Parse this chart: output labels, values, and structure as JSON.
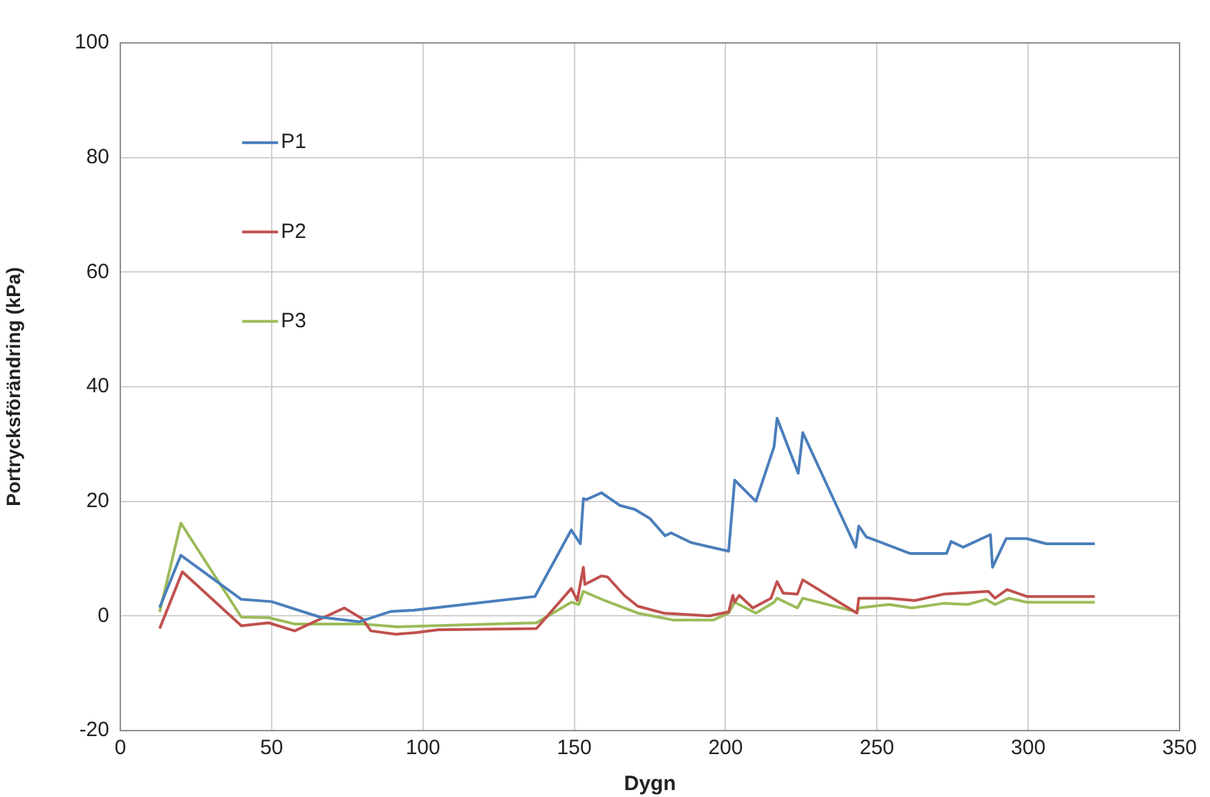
{
  "chart_data": {
    "type": "line",
    "xlabel": "Dygn",
    "ylabel": "Portrycksförändring (kPa)",
    "xlim": [
      0,
      350
    ],
    "xticks": [
      0,
      50,
      100,
      150,
      200,
      250,
      300,
      350
    ],
    "ylim": [
      -20,
      100
    ],
    "yticks": [
      -20,
      0,
      20,
      40,
      60,
      80,
      100
    ],
    "grid": true,
    "legend": "top left",
    "marker": "none",
    "line_style": "solid",
    "series": [
      {
        "name": "P1",
        "color": "#4a7ebb",
        "x": [
          13,
          20,
          40,
          50,
          66,
          79,
          89.5,
          97,
          137,
          149,
          152,
          153,
          154,
          159,
          165,
          170,
          175,
          180,
          182,
          188.6,
          201,
          203,
          210,
          216,
          217,
          224,
          225.5,
          243,
          244,
          246.5,
          261,
          273,
          274.5,
          278.5,
          287.5,
          288.2,
          292.7,
          299.5,
          306,
          322
        ],
        "values": [
          1.5,
          10.6,
          2.9,
          2.5,
          -0.2,
          -1,
          0.8,
          1,
          3.4,
          15,
          12.6,
          20.5,
          20.3,
          21.5,
          19.3,
          18.6,
          17,
          14,
          14.5,
          12.8,
          11.3,
          23.7,
          20,
          29.5,
          34.5,
          24.9,
          32,
          12,
          15.7,
          13.8,
          10.9,
          10.9,
          13,
          12,
          14.2,
          8.5,
          13.5,
          13.5,
          12.6,
          12.6
        ]
      },
      {
        "name": "P2",
        "color": "#c0504d",
        "x": [
          13,
          20.5,
          40,
          49,
          57.6,
          74,
          80,
          82.8,
          91,
          98,
          105,
          137.5,
          149,
          151,
          153,
          153.5,
          159,
          161,
          166.5,
          171,
          179.5,
          194.6,
          201,
          202.4,
          203,
          204.5,
          209,
          215,
          217,
          219,
          223.7,
          225.5,
          243.4,
          244,
          254,
          262.5,
          272,
          286.8,
          289,
          293,
          299.5,
          322
        ],
        "values": [
          -2.2,
          7.7,
          -1.7,
          -1.2,
          -2.6,
          1.4,
          -0.5,
          -2.6,
          -3.2,
          -2.9,
          -2.4,
          -2.2,
          4.8,
          2.7,
          8.5,
          5.5,
          7,
          6.8,
          3.6,
          1.7,
          0.5,
          0,
          0.7,
          3.6,
          2.4,
          3.6,
          1.4,
          3.1,
          6,
          4,
          3.8,
          6.3,
          0.5,
          3.1,
          3.1,
          2.7,
          3.8,
          4.3,
          3.1,
          4.6,
          3.4,
          3.4
        ]
      },
      {
        "name": "P3",
        "color": "#9bbb59",
        "x": [
          13,
          20,
          40,
          49,
          57.6,
          80,
          91.5,
          137.5,
          149,
          151.5,
          153,
          160,
          171,
          182.6,
          196,
          201,
          203,
          210,
          216,
          217,
          223.7,
          225.5,
          243.4,
          244,
          254,
          261.6,
          272,
          280,
          286,
          289,
          293.6,
          299.5,
          322
        ],
        "values": [
          0.7,
          16.2,
          -0.2,
          -0.3,
          -1.4,
          -1.4,
          -1.9,
          -1.2,
          2.4,
          2,
          4.3,
          2.7,
          0.5,
          -0.7,
          -0.7,
          0.5,
          2.4,
          0.5,
          2.4,
          3.1,
          1.4,
          3.1,
          0.7,
          1.4,
          2,
          1.4,
          2.2,
          2,
          2.9,
          2,
          3.1,
          2.4,
          2.4
        ]
      }
    ]
  }
}
